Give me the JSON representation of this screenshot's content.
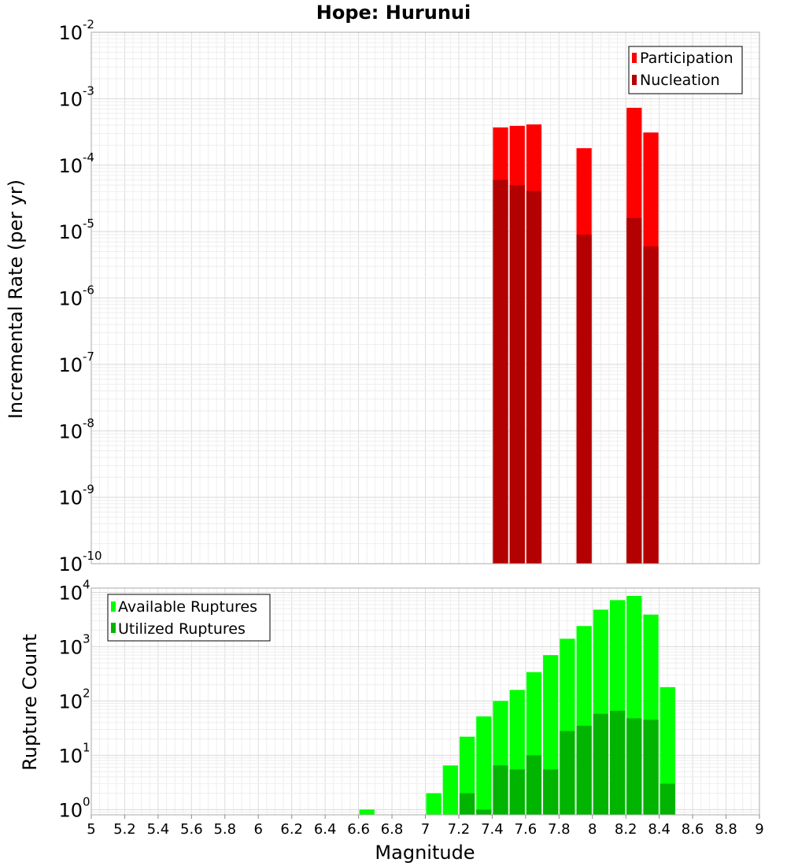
{
  "chart_data": [
    {
      "type": "bar",
      "title": "Hope: Hurunui",
      "ylabel": "Incremental Rate (per yr)",
      "xlabel": "",
      "y_scale": "log",
      "ylim": [
        1e-10,
        0.01
      ],
      "xlim": [
        5,
        9
      ],
      "bar_width": 0.1,
      "y_ticks": [
        {
          "base": "10",
          "exp": "-10",
          "value": 1e-10
        },
        {
          "base": "10",
          "exp": "-9",
          "value": 1e-09
        },
        {
          "base": "10",
          "exp": "-8",
          "value": 1e-08
        },
        {
          "base": "10",
          "exp": "-7",
          "value": 1e-07
        },
        {
          "base": "10",
          "exp": "-6",
          "value": 1e-06
        },
        {
          "base": "10",
          "exp": "-5",
          "value": 1e-05
        },
        {
          "base": "10",
          "exp": "-4",
          "value": 0.0001
        },
        {
          "base": "10",
          "exp": "-3",
          "value": 0.001
        },
        {
          "base": "10",
          "exp": "-2",
          "value": 0.01
        }
      ],
      "legend_position": "top-right",
      "series": [
        {
          "name": "Participation",
          "color": "#ff0000",
          "points": [
            [
              7.45,
              0.00037
            ],
            [
              7.55,
              0.00039
            ],
            [
              7.65,
              0.00041
            ],
            [
              7.95,
              0.00018
            ],
            [
              8.25,
              0.00073
            ],
            [
              8.35,
              0.00031
            ]
          ]
        },
        {
          "name": "Nucleation",
          "color": "#b30000",
          "points": [
            [
              7.45,
              6e-05
            ],
            [
              7.55,
              5e-05
            ],
            [
              7.65,
              4.1e-05
            ],
            [
              7.95,
              9e-06
            ],
            [
              8.25,
              1.6e-05
            ],
            [
              8.35,
              6e-06
            ]
          ]
        }
      ]
    },
    {
      "type": "bar",
      "title": "",
      "ylabel": "Rupture Count",
      "xlabel": "Magnitude",
      "y_scale": "log",
      "ylim": [
        0.8,
        12000
      ],
      "xlim": [
        5,
        9
      ],
      "bar_width": 0.1,
      "y_ticks": [
        {
          "base": "10",
          "exp": "0",
          "value": 1
        },
        {
          "base": "10",
          "exp": "1",
          "value": 10
        },
        {
          "base": "10",
          "exp": "2",
          "value": 100
        },
        {
          "base": "10",
          "exp": "3",
          "value": 1000
        },
        {
          "base": "10",
          "exp": "4",
          "value": 10000
        }
      ],
      "x_ticks": [
        "5",
        "5.2",
        "5.4",
        "5.6",
        "5.8",
        "6",
        "6.2",
        "6.4",
        "6.6",
        "6.8",
        "7",
        "7.2",
        "7.4",
        "7.6",
        "7.8",
        "8",
        "8.2",
        "8.4",
        "8.6",
        "8.8",
        "9"
      ],
      "legend_position": "top-left",
      "series": [
        {
          "name": "Available Ruptures",
          "color": "#00ff00",
          "points": [
            [
              6.65,
              1
            ],
            [
              7.05,
              2
            ],
            [
              7.15,
              6.5
            ],
            [
              7.25,
              22
            ],
            [
              7.35,
              52
            ],
            [
              7.45,
              100
            ],
            [
              7.55,
              160
            ],
            [
              7.65,
              340
            ],
            [
              7.75,
              700
            ],
            [
              7.85,
              1400
            ],
            [
              7.95,
              2400
            ],
            [
              8.05,
              4800
            ],
            [
              8.15,
              7200
            ],
            [
              8.25,
              8600
            ],
            [
              8.35,
              3900
            ],
            [
              8.45,
              180
            ]
          ]
        },
        {
          "name": "Utilized Ruptures",
          "color": "#00b400",
          "points": [
            [
              7.25,
              2
            ],
            [
              7.35,
              1
            ],
            [
              7.45,
              6.5
            ],
            [
              7.55,
              5.5
            ],
            [
              7.65,
              10
            ],
            [
              7.75,
              5.5
            ],
            [
              7.85,
              28
            ],
            [
              7.95,
              35
            ],
            [
              8.05,
              58
            ],
            [
              8.15,
              66
            ],
            [
              8.25,
              48
            ],
            [
              8.35,
              45
            ],
            [
              8.45,
              3
            ]
          ]
        }
      ]
    }
  ]
}
